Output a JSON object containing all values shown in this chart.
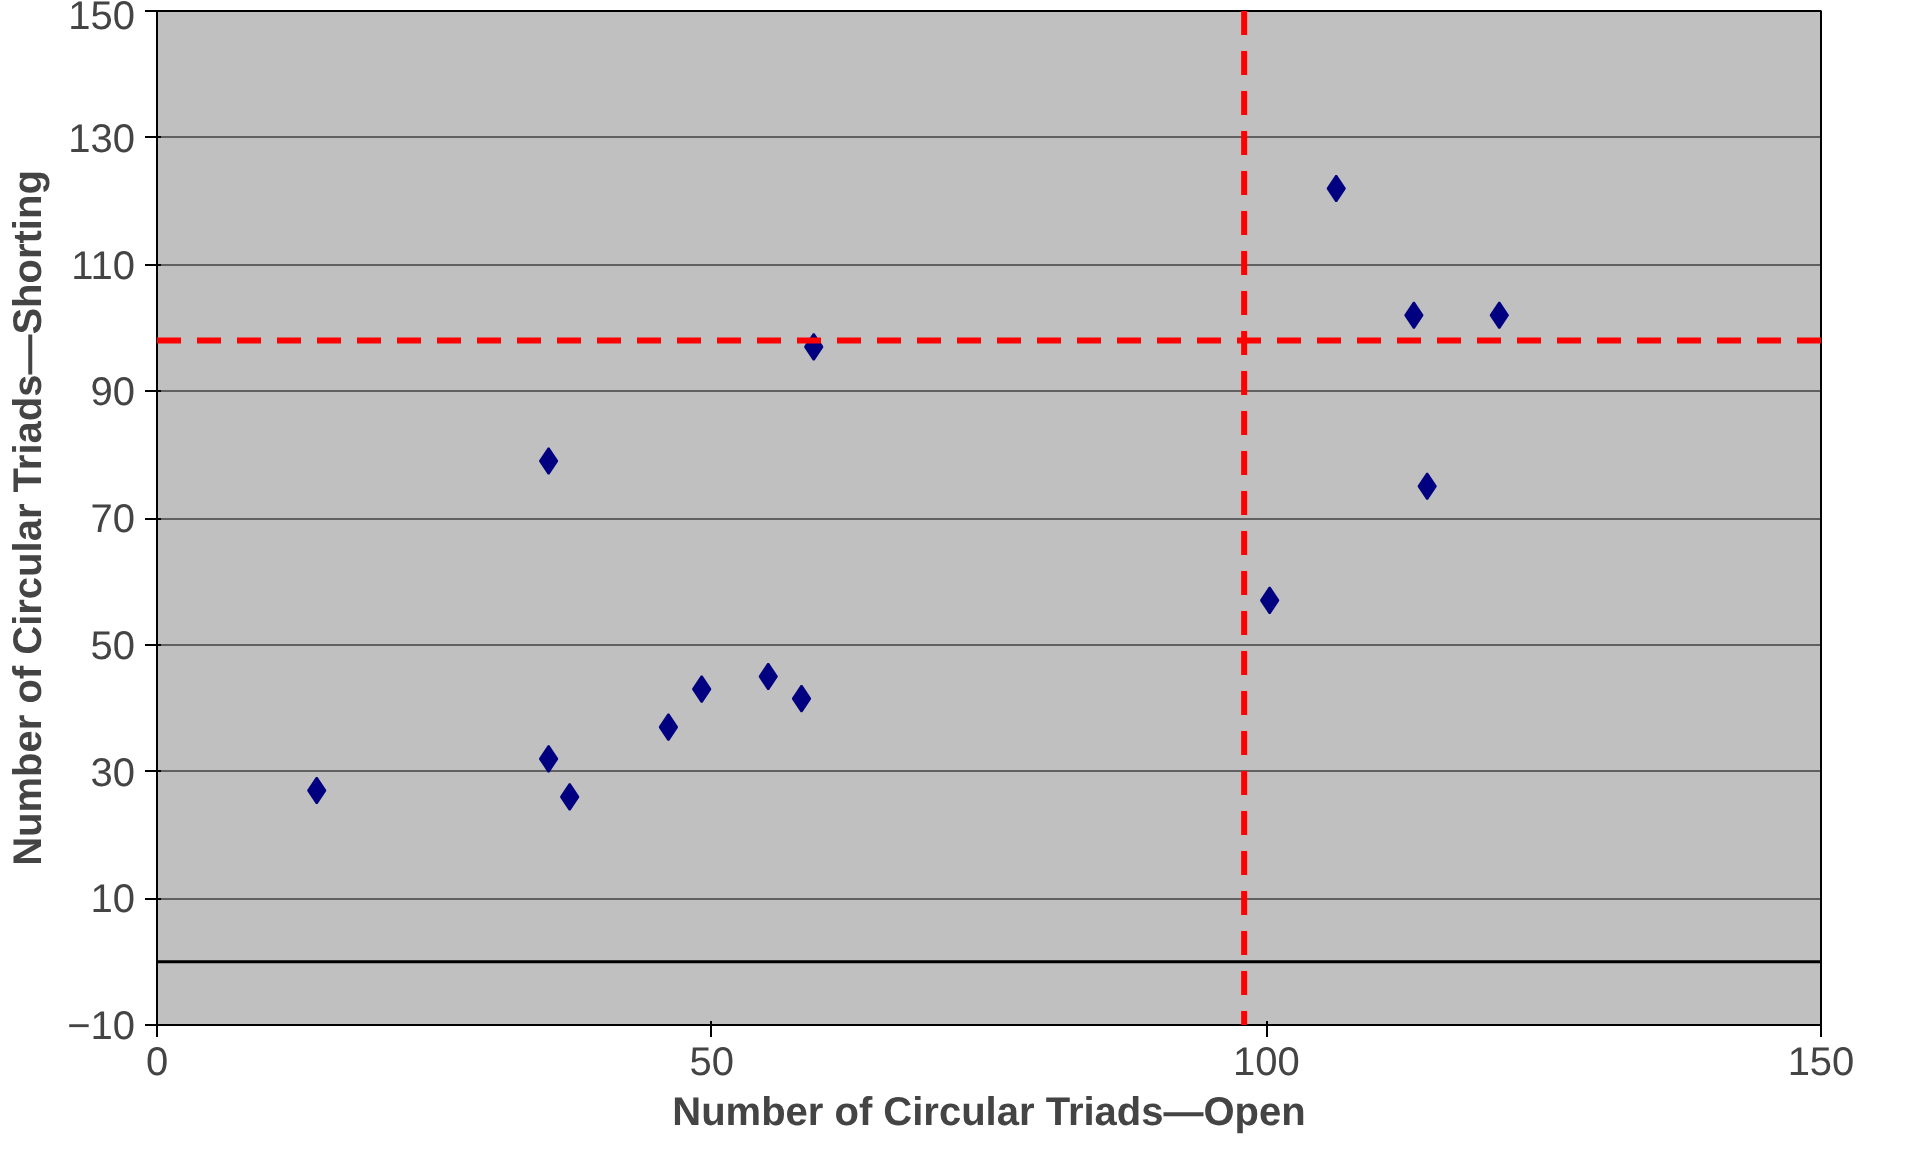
{
  "chart_data": {
    "type": "scatter",
    "xlabel": "Number of Circular Triads—Open",
    "ylabel": "Number of Circular Triads—Shorting",
    "x": [
      14.4,
      35.3,
      35.3,
      37.2,
      46.1,
      49.1,
      55.1,
      58.1,
      59.2,
      100.3,
      106.3,
      113.3,
      114.5,
      121
    ],
    "series": [
      {
        "color": "#000080",
        "values": [
          27,
          79,
          32,
          26,
          37,
          43,
          45,
          41.5,
          97,
          57,
          122,
          102,
          75,
          102
        ]
      }
    ],
    "xlim": [
      0,
      150
    ],
    "xticks": [
      0,
      50,
      100,
      150
    ],
    "ylim": [
      -10,
      150
    ],
    "yticks": [
      -10,
      10,
      30,
      50,
      70,
      90,
      110,
      130,
      150
    ],
    "grid": "y",
    "marker": "diamond",
    "ref_lines": [
      {
        "axis": "y",
        "value": 0,
        "color": "#000000",
        "line_style": "solid"
      },
      {
        "axis": "x",
        "value": 98,
        "color": "#ff0000",
        "line_style": "dashed"
      },
      {
        "axis": "y",
        "value": 98,
        "color": "#ff0000",
        "line_style": "dashed"
      }
    ]
  }
}
